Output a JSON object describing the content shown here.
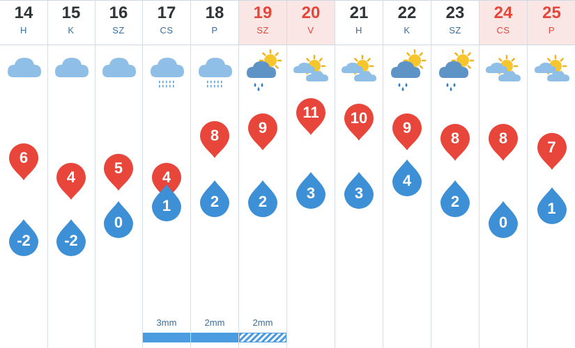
{
  "forecast": {
    "colors": {
      "max_temp": "#e8463a",
      "min_temp": "#3d8fd6",
      "weekend_header_bg": "#fbe6e6",
      "weekend_text": "#e4473a",
      "weekday_text": "#2f3437",
      "precip_bar": "#4a9be0"
    },
    "days": [
      {
        "date": "14",
        "abbr": "H",
        "weekend": false,
        "icon": "cloudy-icon",
        "max": "6",
        "min": "-2",
        "precip": null
      },
      {
        "date": "15",
        "abbr": "K",
        "weekend": false,
        "icon": "cloudy-icon",
        "max": "4",
        "min": "-2",
        "precip": null
      },
      {
        "date": "16",
        "abbr": "SZ",
        "weekend": false,
        "icon": "cloudy-icon",
        "max": "5",
        "min": "0",
        "precip": null
      },
      {
        "date": "17",
        "abbr": "CS",
        "weekend": false,
        "icon": "cloud-drizzle-icon",
        "max": "4",
        "min": "1",
        "precip": "3mm",
        "precip_style": "solid"
      },
      {
        "date": "18",
        "abbr": "P",
        "weekend": false,
        "icon": "cloud-drizzle-icon",
        "max": "8",
        "min": "2",
        "precip": "2mm",
        "precip_style": "solid"
      },
      {
        "date": "19",
        "abbr": "SZ",
        "weekend": true,
        "icon": "sun-cloud-rain-icon",
        "max": "9",
        "min": "2",
        "precip": "2mm",
        "precip_style": "striped"
      },
      {
        "date": "20",
        "abbr": "V",
        "weekend": true,
        "icon": "partly-sunny-icon",
        "max": "11",
        "min": "3",
        "precip": null
      },
      {
        "date": "21",
        "abbr": "H",
        "weekend": false,
        "icon": "partly-sunny-icon",
        "max": "10",
        "min": "3",
        "precip": null
      },
      {
        "date": "22",
        "abbr": "K",
        "weekend": false,
        "icon": "sun-cloud-rain-icon",
        "max": "9",
        "min": "4",
        "precip": null
      },
      {
        "date": "23",
        "abbr": "SZ",
        "weekend": false,
        "icon": "sun-cloud-rain-icon",
        "max": "8",
        "min": "2",
        "precip": null
      },
      {
        "date": "24",
        "abbr": "CS",
        "weekend": true,
        "icon": "partly-sunny-icon",
        "max": "8",
        "min": "0",
        "precip": null
      },
      {
        "date": "25",
        "abbr": "P",
        "weekend": true,
        "icon": "partly-sunny-icon",
        "max": "7",
        "min": "1",
        "precip": null
      }
    ]
  }
}
